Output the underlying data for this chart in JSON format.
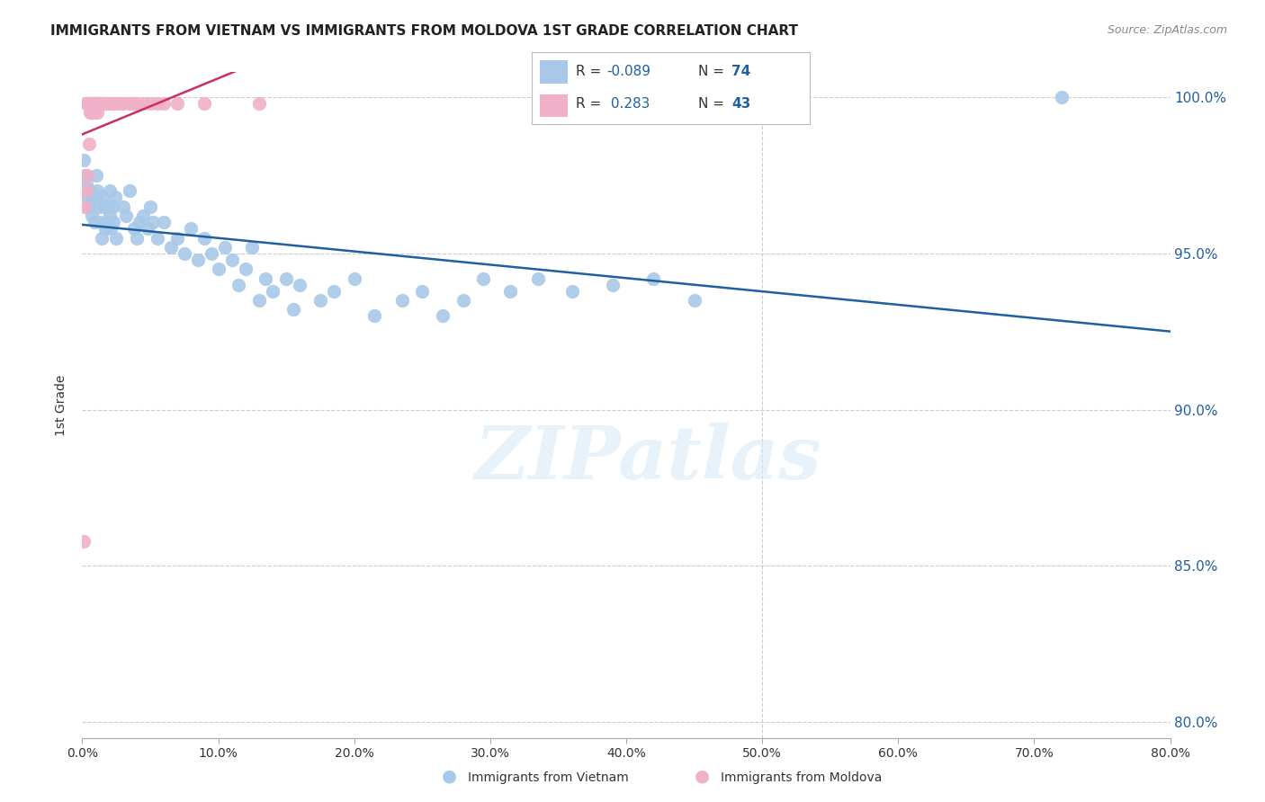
{
  "title": "IMMIGRANTS FROM VIETNAM VS IMMIGRANTS FROM MOLDOVA 1ST GRADE CORRELATION CHART",
  "source": "Source: ZipAtlas.com",
  "ylabel": "1st Grade",
  "xmin": 0.0,
  "xmax": 0.8,
  "ymin": 0.795,
  "ymax": 1.008,
  "yticks": [
    0.8,
    0.85,
    0.9,
    0.95,
    1.0
  ],
  "ytick_labels": [
    "80.0%",
    "85.0%",
    "90.0%",
    "95.0%",
    "100.0%"
  ],
  "xticks": [
    0.0,
    0.1,
    0.2,
    0.3,
    0.4,
    0.5,
    0.6,
    0.7,
    0.8
  ],
  "xtick_labels": [
    "0.0%",
    "10.0%",
    "20.0%",
    "30.0%",
    "40.0%",
    "50.0%",
    "60.0%",
    "70.0%",
    "80.0%"
  ],
  "legend_R_vietnam": "-0.089",
  "legend_N_vietnam": "74",
  "legend_R_moldova": "0.283",
  "legend_N_moldova": "43",
  "color_vietnam": "#a8c8e8",
  "color_moldova": "#f0b0c8",
  "color_trendline_vietnam": "#2060a0",
  "color_trendline_moldova": "#c83060",
  "vietnam_x": [
    0.001,
    0.002,
    0.003,
    0.004,
    0.005,
    0.006,
    0.007,
    0.008,
    0.009,
    0.01,
    0.01,
    0.011,
    0.012,
    0.013,
    0.014,
    0.015,
    0.016,
    0.017,
    0.018,
    0.019,
    0.02,
    0.02,
    0.021,
    0.022,
    0.023,
    0.024,
    0.025,
    0.03,
    0.032,
    0.035,
    0.038,
    0.04,
    0.042,
    0.045,
    0.048,
    0.05,
    0.052,
    0.055,
    0.06,
    0.065,
    0.07,
    0.075,
    0.08,
    0.085,
    0.09,
    0.095,
    0.1,
    0.105,
    0.11,
    0.115,
    0.12,
    0.125,
    0.13,
    0.135,
    0.14,
    0.15,
    0.155,
    0.16,
    0.175,
    0.185,
    0.2,
    0.215,
    0.235,
    0.25,
    0.265,
    0.28,
    0.295,
    0.315,
    0.335,
    0.36,
    0.39,
    0.42,
    0.45,
    0.72
  ],
  "vietnam_y": [
    0.98,
    0.975,
    0.972,
    0.968,
    0.965,
    0.97,
    0.962,
    0.968,
    0.96,
    0.975,
    0.968,
    0.97,
    0.965,
    0.96,
    0.955,
    0.968,
    0.965,
    0.958,
    0.96,
    0.965,
    0.962,
    0.97,
    0.958,
    0.965,
    0.96,
    0.968,
    0.955,
    0.965,
    0.962,
    0.97,
    0.958,
    0.955,
    0.96,
    0.962,
    0.958,
    0.965,
    0.96,
    0.955,
    0.96,
    0.952,
    0.955,
    0.95,
    0.958,
    0.948,
    0.955,
    0.95,
    0.945,
    0.952,
    0.948,
    0.94,
    0.945,
    0.952,
    0.935,
    0.942,
    0.938,
    0.942,
    0.932,
    0.94,
    0.935,
    0.938,
    0.942,
    0.93,
    0.935,
    0.938,
    0.93,
    0.935,
    0.942,
    0.938,
    0.942,
    0.938,
    0.94,
    0.942,
    0.935,
    1.0
  ],
  "moldova_x": [
    0.001,
    0.002,
    0.003,
    0.003,
    0.004,
    0.004,
    0.005,
    0.005,
    0.006,
    0.006,
    0.007,
    0.007,
    0.008,
    0.008,
    0.009,
    0.009,
    0.01,
    0.01,
    0.011,
    0.011,
    0.012,
    0.012,
    0.013,
    0.014,
    0.015,
    0.016,
    0.017,
    0.018,
    0.02,
    0.022,
    0.025,
    0.028,
    0.03,
    0.035,
    0.038,
    0.04,
    0.045,
    0.05,
    0.055,
    0.06,
    0.07,
    0.09,
    0.13
  ],
  "moldova_y": [
    0.858,
    0.965,
    0.97,
    0.998,
    0.975,
    0.998,
    0.985,
    0.998,
    0.995,
    0.998,
    0.998,
    0.995,
    0.998,
    0.998,
    0.998,
    0.995,
    0.998,
    0.998,
    0.998,
    0.995,
    0.998,
    0.998,
    0.998,
    0.998,
    0.998,
    0.998,
    0.998,
    0.998,
    0.998,
    0.998,
    0.998,
    0.998,
    0.998,
    0.998,
    0.998,
    0.998,
    0.998,
    0.998,
    0.998,
    0.998,
    0.998,
    0.998,
    0.998
  ],
  "watermark_text": "ZIPatlas",
  "background_color": "#ffffff",
  "grid_color": "#cccccc",
  "title_fontsize": 11,
  "axis_color": "#2060a0"
}
